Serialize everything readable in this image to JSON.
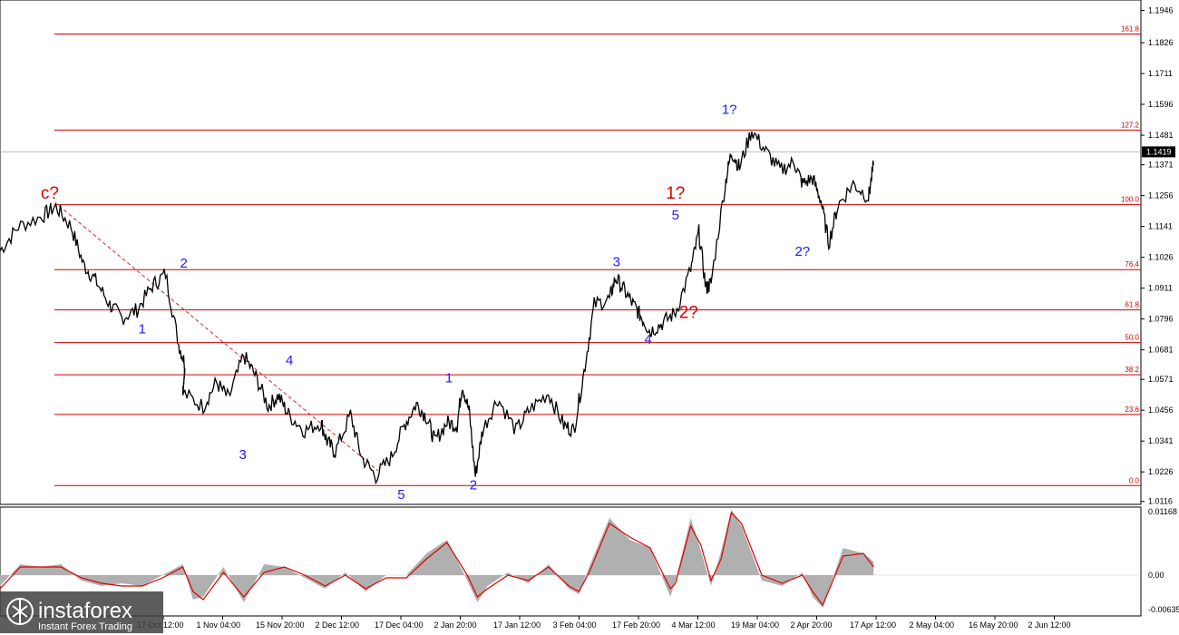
{
  "chart_data": [
    {
      "type": "line",
      "panel": "price",
      "y_ticks": [
        "1.1946",
        "1.1826",
        "1.1711",
        "1.1596",
        "1.1481",
        "1.1371",
        "1.1256",
        "1.1141",
        "1.1026",
        "1.0911",
        "1.0796",
        "1.0681",
        "1.0571",
        "1.0456",
        "1.0341",
        "1.0226",
        "1.0116"
      ],
      "ylim": [
        1.0105,
        1.1985
      ],
      "current_price": "1.1419",
      "current_price_value": 1.1419,
      "fib_levels": [
        {
          "label": "0.0",
          "value": 1.0175
        },
        {
          "label": "23.6",
          "value": 1.044
        },
        {
          "label": "38.2",
          "value": 1.0588
        },
        {
          "label": "50.0",
          "value": 1.0708
        },
        {
          "label": "61.8",
          "value": 1.083
        },
        {
          "label": "76.4",
          "value": 1.098
        },
        {
          "label": "100.0",
          "value": 1.1222
        },
        {
          "label": "127.2",
          "value": 1.15
        },
        {
          "label": "161.8",
          "value": 1.1858
        }
      ],
      "series": [
        {
          "x": [
            0,
            0.018,
            0.042,
            0.055,
            0.07,
            0.082,
            0.094,
            0.108,
            0.12,
            0.135,
            0.15,
            0.163,
            0.176,
            0.182,
            0.18,
            0.2,
            0.213,
            0.225,
            0.24,
            0.252,
            0.264,
            0.274,
            0.284,
            0.3,
            0.316,
            0.322,
            0.33,
            0.345,
            0.356,
            0.37,
            0.385,
            0.398,
            0.41,
            0.42,
            0.428,
            0.44,
            0.45,
            0.455,
            0.462,
            0.468,
            0.475,
            0.49,
            0.508,
            0.522,
            0.54,
            0.555,
            0.565,
            0.575,
            0.585,
            0.6,
            0.606,
            0.615,
            0.625,
            0.632,
            0.64,
            0.652,
            0.665,
            0.68,
            0.688,
            0.695,
            0.7,
            0.714,
            0.72,
            0.728,
            0.74,
            0.754,
            0.768,
            0.782,
            0.79,
            0.8,
            0.808,
            0.816,
            0.825,
            0.84,
            0.855,
            0.86
          ],
          "y": [
            1.105,
            1.114,
            1.118,
            1.1215,
            1.114,
            1.1,
            1.094,
            1.085,
            1.08,
            1.083,
            1.092,
            1.0965,
            1.07,
            1.063,
            1.052,
            1.047,
            1.056,
            1.05,
            1.066,
            1.058,
            1.047,
            1.051,
            1.044,
            1.038,
            1.041,
            1.034,
            1.03,
            1.044,
            1.028,
            1.021,
            1.028,
            1.04,
            1.048,
            1.043,
            1.034,
            1.041,
            1.04,
            1.055,
            1.045,
            1.021,
            1.038,
            1.05,
            1.038,
            1.046,
            1.052,
            1.04,
            1.038,
            1.06,
            1.085,
            1.087,
            1.095,
            1.09,
            1.084,
            1.08,
            1.075,
            1.078,
            1.082,
            1.098,
            1.112,
            1.091,
            1.093,
            1.13,
            1.142,
            1.136,
            1.15,
            1.142,
            1.135,
            1.138,
            1.13,
            1.132,
            1.124,
            1.108,
            1.122,
            1.13,
            1.125,
            1.137
          ]
        }
      ],
      "wave_labels": [
        {
          "text": "c?",
          "color": "red",
          "x": 0.049,
          "y": 1.1245
        },
        {
          "text": "1",
          "color": "blue",
          "x": 0.14,
          "y": 1.0742
        },
        {
          "text": "2",
          "color": "blue",
          "x": 0.181,
          "y": 1.0988
        },
        {
          "text": "3",
          "color": "blue",
          "x": 0.239,
          "y": 1.0274
        },
        {
          "text": "4",
          "color": "blue",
          "x": 0.285,
          "y": 1.0626
        },
        {
          "text": "5",
          "color": "blue",
          "x": 0.395,
          "y": 1.0126
        },
        {
          "text": "1",
          "color": "blue",
          "x": 0.442,
          "y": 1.056
        },
        {
          "text": "2",
          "color": "blue",
          "x": 0.466,
          "y": 1.0161
        },
        {
          "text": "3",
          "color": "blue",
          "x": 0.607,
          "y": 1.0992
        },
        {
          "text": "4",
          "color": "blue",
          "x": 0.638,
          "y": 1.0704
        },
        {
          "text": "5",
          "color": "blue",
          "x": 0.665,
          "y": 1.1167
        },
        {
          "text": "1?",
          "color": "red",
          "x": 0.665,
          "y": 1.1245
        },
        {
          "text": "2?",
          "color": "red",
          "x": 0.678,
          "y": 1.08
        },
        {
          "text": "1?",
          "color": "blue",
          "x": 0.718,
          "y": 1.156
        },
        {
          "text": "2?",
          "color": "blue",
          "x": 0.79,
          "y": 1.1032
        }
      ],
      "trendline": {
        "from": {
          "x": 0.058,
          "y": 1.1218
        },
        "to": {
          "x": 0.372,
          "y": 1.0231
        }
      }
    },
    {
      "type": "area",
      "panel": "oscillator",
      "y_ticks": [
        "0.01168",
        "0.00",
        "-0.00635"
      ],
      "ylim": [
        -0.0075,
        0.0125
      ],
      "series": [
        {
          "name": "histogram",
          "x": [
            0,
            0.02,
            0.04,
            0.06,
            0.08,
            0.1,
            0.12,
            0.14,
            0.16,
            0.18,
            0.19,
            0.2,
            0.22,
            0.24,
            0.26,
            0.28,
            0.3,
            0.32,
            0.34,
            0.36,
            0.38,
            0.4,
            0.42,
            0.44,
            0.46,
            0.47,
            0.48,
            0.5,
            0.52,
            0.54,
            0.56,
            0.57,
            0.58,
            0.6,
            0.62,
            0.64,
            0.66,
            0.665,
            0.68,
            0.69,
            0.7,
            0.71,
            0.72,
            0.73,
            0.75,
            0.77,
            0.79,
            0.8,
            0.81,
            0.83,
            0.85,
            0.86
          ],
          "y": [
            -0.002,
            0.002,
            0.0015,
            0.002,
            -0.001,
            -0.002,
            -0.0015,
            -0.002,
            0,
            0.002,
            -0.0045,
            -0.004,
            0.0015,
            -0.005,
            0.002,
            0.0015,
            -0.0005,
            -0.0025,
            0.0005,
            -0.003,
            0,
            0,
            0.004,
            0.0065,
            -0.001,
            -0.005,
            -0.002,
            0.0005,
            -0.0015,
            0.002,
            -0.0025,
            -0.0035,
            0.0015,
            0.0105,
            0.0065,
            0.005,
            -0.004,
            -0.001,
            0.0105,
            0.0045,
            -0.002,
            0.0045,
            0.012,
            0.009,
            -0.001,
            -0.002,
            0.0005,
            -0.004,
            -0.006,
            0.005,
            0.004,
            0.0025
          ]
        },
        {
          "name": "signal",
          "x": [
            0,
            0.02,
            0.04,
            0.06,
            0.08,
            0.1,
            0.12,
            0.14,
            0.16,
            0.18,
            0.19,
            0.2,
            0.22,
            0.24,
            0.26,
            0.28,
            0.3,
            0.32,
            0.34,
            0.36,
            0.38,
            0.4,
            0.42,
            0.44,
            0.46,
            0.47,
            0.48,
            0.5,
            0.52,
            0.54,
            0.56,
            0.57,
            0.58,
            0.6,
            0.62,
            0.64,
            0.66,
            0.665,
            0.68,
            0.69,
            0.7,
            0.71,
            0.72,
            0.73,
            0.75,
            0.77,
            0.79,
            0.8,
            0.81,
            0.83,
            0.85,
            0.86
          ],
          "y": [
            -0.0025,
            0.0015,
            0.0015,
            0.0015,
            -0.0005,
            -0.0015,
            -0.002,
            -0.002,
            -0.0005,
            0.0015,
            -0.003,
            -0.0045,
            0.0005,
            -0.004,
            0.0005,
            0.0015,
            0,
            -0.002,
            0,
            -0.0025,
            -0.0005,
            -0.0005,
            0.003,
            0.006,
            0,
            -0.004,
            -0.0025,
            0,
            -0.001,
            0.0015,
            -0.002,
            -0.003,
            0.0005,
            0.0095,
            0.007,
            0.005,
            -0.0025,
            -0.0015,
            0.009,
            0.0055,
            -0.001,
            0.003,
            0.0115,
            0.0095,
            0,
            -0.0015,
            0,
            -0.003,
            -0.0055,
            0.0035,
            0.004,
            0.0015
          ]
        }
      ]
    }
  ],
  "time_axis": [
    "17 Oct 12:00",
    "1 Nov 04:00",
    "15 Nov 20:00",
    "2 Dec 12:00",
    "17 Dec 04:00",
    "2 Jan 20:00",
    "17 Jan 12:00",
    "3 Feb 04:00",
    "17 Feb 20:00",
    "4 Mar 12:00",
    "19 Mar 04:00",
    "2 Apr 20:00",
    "17 Apr 12:00",
    "2 May 04:00",
    "16 May 20:00",
    "2 Jun 12:00"
  ],
  "brand": {
    "name": "instaforex",
    "tagline": "Instant Forex Trading"
  },
  "colors": {
    "price_line": "#000000",
    "fib_line": "#cc0000",
    "trendline": "#e02020",
    "wave_blue": "#1a1aff",
    "wave_red": "#e00000",
    "histogram": "#b0b0b0",
    "signal": "#dd0000",
    "price_tag_bg": "#000000"
  }
}
